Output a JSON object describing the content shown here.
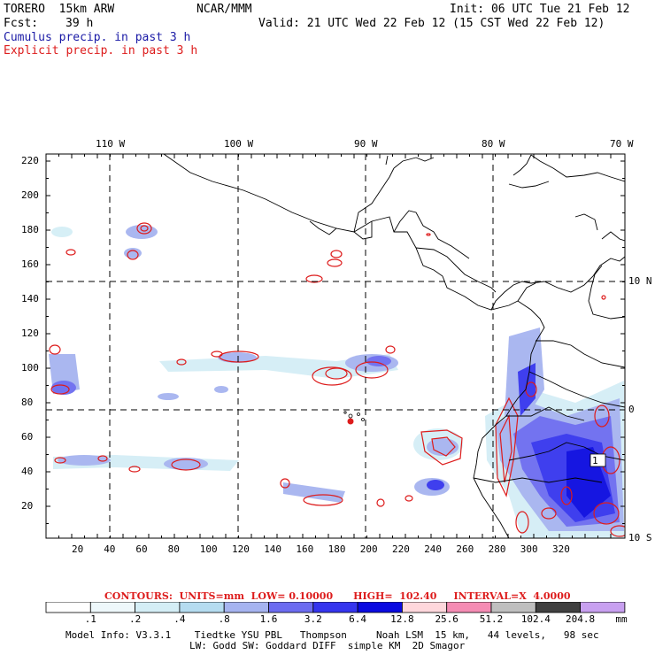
{
  "header": {
    "model": "TORERO  15km ARW",
    "org": "NCAR/MMM",
    "init": "Init: 06 UTC Tue 21 Feb 12",
    "fcst_label": "Fcst:",
    "fcst_value": "39 h",
    "valid": "Valid: 21 UTC Wed 22 Feb 12 (15 CST Wed 22 Feb 12)",
    "cumulus": "Cumulus precip. in past 3 h",
    "explicit": "Explicit precip. in past 3 h"
  },
  "top_lon_labels": [
    "110 W",
    "100 W",
    "90 W",
    "80 W",
    "70 W"
  ],
  "right_lat_labels": [
    "10 N",
    "0",
    "10 S"
  ],
  "left_y_ticks": [
    "220",
    "200",
    "180",
    "160",
    "140",
    "120",
    "100",
    "80",
    "60",
    "40",
    "20"
  ],
  "bottom_x_ticks": [
    "20",
    "40",
    "60",
    "80",
    "100",
    "120",
    "140",
    "160",
    "180",
    "200",
    "220",
    "240",
    "260",
    "280",
    "300",
    "320"
  ],
  "map_label": "1",
  "contours_text": "CONTOURS:  UNITS=mm  LOW= 0.10000      HIGH=  102.40     INTERVAL=X  4.0000",
  "colorbar": {
    "labels": [
      ".1",
      ".2",
      ".4",
      ".8",
      "1.6",
      "3.2",
      "6.4",
      "12.8",
      "25.6",
      "51.2",
      "102.4",
      "204.8"
    ],
    "units": "mm",
    "colors": [
      "#ffffff",
      "#eef8fb",
      "#d4eef6",
      "#b5dcf0",
      "#a6b4f0",
      "#6c6cf0",
      "#3535ee",
      "#0a0ae0",
      "#ffd7dc",
      "#f58cb4",
      "#bfbfbf",
      "#404040",
      "#c8a0f0"
    ]
  },
  "model_info": {
    "line1": "Model Info: V3.3.1    Tiedtke YSU PBL   Thompson     Noah LSM  15 km,   44 levels,   98 sec",
    "line2": "LW: Godd SW: Goddard DIFF  simple KM  2D Smagor"
  }
}
